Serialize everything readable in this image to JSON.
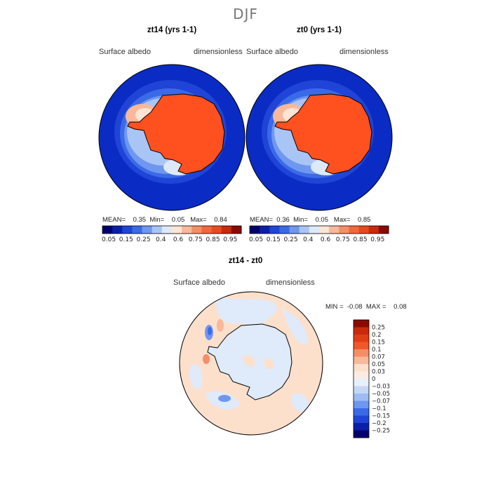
{
  "figure": {
    "season": "DJF",
    "variable_label": "Surface albedo",
    "units_label": "dimensionless"
  },
  "panels": [
    {
      "title": "zt14 (yrs 1-1)",
      "stats": {
        "mean_label": "MEAN=",
        "mean": "0.35",
        "min_label": "Min=",
        "min": "0.05",
        "max_label": "Max=",
        "max": "0.84"
      }
    },
    {
      "title": "zt0 (yrs 1-1)",
      "stats": {
        "mean_label": "MEAN=",
        "mean": "0.36",
        "min_label": "Min=",
        "min": "0.05",
        "max_label": "Max=",
        "max": "0.85"
      }
    }
  ],
  "abs_colorbar": {
    "labels": [
      "0.05",
      "0.15",
      "0.25",
      "0.4",
      "0.6",
      "0.75",
      "0.85",
      "0.95"
    ],
    "colors": [
      "#00006e",
      "#0a1fa8",
      "#1f44d6",
      "#3a6ae8",
      "#6f97f0",
      "#a9c5f6",
      "#dce9fb",
      "#fde4d4",
      "#f8b89a",
      "#f58e67",
      "#f2683c",
      "#e84a1e",
      "#c92a0c",
      "#8b0a00"
    ]
  },
  "diff_panel": {
    "title": "zt14 - zt0",
    "min_label": "MIN =",
    "min": "-0.08",
    "max_label": "MAX =",
    "max": "0.08"
  },
  "diff_colorbar": {
    "labels": [
      "0.25",
      "0.2",
      "0.15",
      "0.1",
      "0.07",
      "0.05",
      "0.03",
      "0",
      "−0.03",
      "−0.05",
      "−0.07",
      "−0.1",
      "−0.15",
      "−0.2",
      "−0.25"
    ],
    "colors": [
      "#8b0a00",
      "#c92a0c",
      "#e03e16",
      "#f0582c",
      "#f58e67",
      "#f8b89a",
      "#fde0cc",
      "#fbece2",
      "#e6f0fb",
      "#c4d8f6",
      "#9dbdf2",
      "#6f97f0",
      "#3a6ae8",
      "#1f44d6",
      "#0a1fa8",
      "#00006e"
    ]
  },
  "colors": {
    "ocean_low": "#0a2bc4",
    "land_high": "#ff5020",
    "diff_positive": "#fde0cc",
    "diff_negative": "#dfeafa"
  }
}
